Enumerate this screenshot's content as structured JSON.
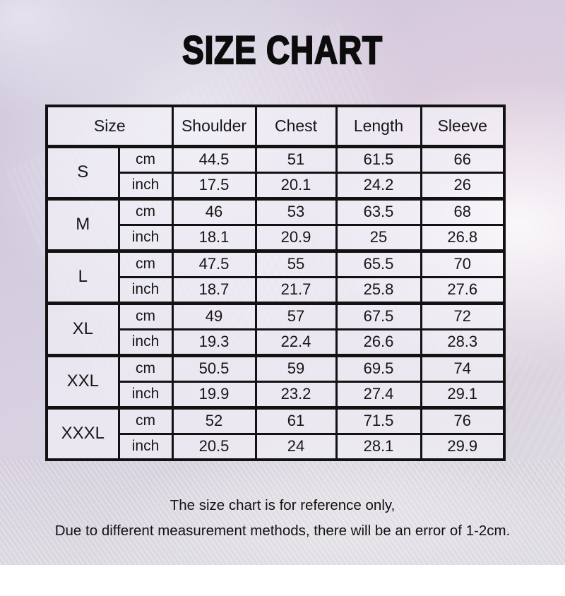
{
  "title": "SIZE CHART",
  "table": {
    "headers": {
      "size": "Size",
      "columns": [
        "Shoulder",
        "Chest",
        "Length",
        "Sleeve"
      ]
    },
    "unit_labels": {
      "cm": "cm",
      "inch": "inch"
    },
    "rows": [
      {
        "size": "S",
        "cm": [
          "44.5",
          "51",
          "61.5",
          "66"
        ],
        "inch": [
          "17.5",
          "20.1",
          "24.2",
          "26"
        ]
      },
      {
        "size": "M",
        "cm": [
          "46",
          "53",
          "63.5",
          "68"
        ],
        "inch": [
          "18.1",
          "20.9",
          "25",
          "26.8"
        ]
      },
      {
        "size": "L",
        "cm": [
          "47.5",
          "55",
          "65.5",
          "70"
        ],
        "inch": [
          "18.7",
          "21.7",
          "25.8",
          "27.6"
        ]
      },
      {
        "size": "XL",
        "cm": [
          "49",
          "57",
          "67.5",
          "72"
        ],
        "inch": [
          "19.3",
          "22.4",
          "26.6",
          "28.3"
        ]
      },
      {
        "size": "XXL",
        "cm": [
          "50.5",
          "59",
          "69.5",
          "74"
        ],
        "inch": [
          "19.9",
          "23.2",
          "27.4",
          "29.1"
        ]
      },
      {
        "size": "XXXL",
        "cm": [
          "52",
          "61",
          "71.5",
          "76"
        ],
        "inch": [
          "20.5",
          "24",
          "28.1",
          "29.9"
        ]
      }
    ]
  },
  "footer": {
    "line1": "The size chart is for reference only,",
    "line2": "Due to different measurement methods, there will be an error of 1-2cm."
  },
  "colors": {
    "border": "#121212",
    "text": "#161616",
    "background_lavender": "#d2cbde",
    "cell_background": "rgba(246,244,250,0.62)"
  }
}
